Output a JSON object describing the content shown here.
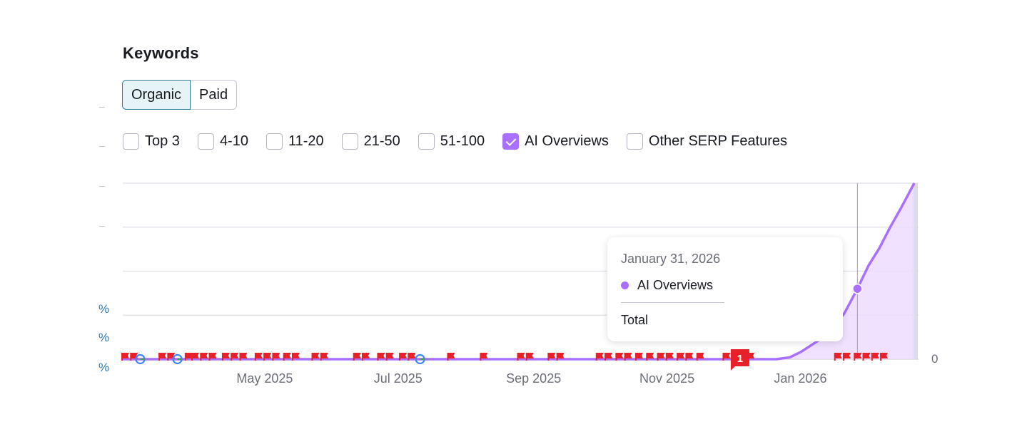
{
  "header": {
    "title": "Keywords"
  },
  "toggle": {
    "organic_label": "Organic",
    "paid_label": "Paid",
    "active": "Organic"
  },
  "filters": [
    {
      "label": "Top 3",
      "checked": false
    },
    {
      "label": "4-10",
      "checked": false
    },
    {
      "label": "11-20",
      "checked": false
    },
    {
      "label": "21-50",
      "checked": false
    },
    {
      "label": "51-100",
      "checked": false
    },
    {
      "label": "AI Overviews",
      "checked": true
    },
    {
      "label": "Other SERP Features",
      "checked": false
    }
  ],
  "left_axis_fragments": [
    "%",
    "%",
    "%"
  ],
  "colors": {
    "series": "#a970ff",
    "area": "#ecdcff",
    "grid": "#e3e5ea",
    "marker": "#e8202a",
    "active_toggle_border": "#2e7d97"
  },
  "chart_data": {
    "type": "area",
    "title": "",
    "xlabel": "",
    "ylabel": "",
    "x_ticks": [
      "May 2025",
      "Jul 2025",
      "Sep 2025",
      "Nov 2025",
      "Jan 2026"
    ],
    "y_right_tick": "0",
    "xlim": [
      "2025-03-01",
      "2026-02-28"
    ],
    "ylim": [
      0,
      100
    ],
    "grid": true,
    "legend": "none",
    "series": [
      {
        "name": "AI Overviews",
        "color": "#a970ff",
        "points": [
          [
            "2025-03-01",
            0
          ],
          [
            "2025-12-25",
            0
          ],
          [
            "2025-12-31",
            1
          ],
          [
            "2026-01-05",
            4
          ],
          [
            "2026-01-10",
            8
          ],
          [
            "2026-01-15",
            12
          ],
          [
            "2026-01-20",
            18
          ],
          [
            "2026-01-25",
            26
          ],
          [
            "2026-01-31",
            40
          ],
          [
            "2026-02-05",
            53
          ],
          [
            "2026-02-10",
            63
          ],
          [
            "2026-02-15",
            75
          ],
          [
            "2026-02-20",
            86
          ],
          [
            "2026-02-26",
            100
          ]
        ]
      }
    ],
    "annotation_flags": [
      "2025-03-01",
      "2025-03-05",
      "2025-03-18",
      "2025-03-22",
      "2025-03-30",
      "2025-04-02",
      "2025-04-06",
      "2025-04-10",
      "2025-04-16",
      "2025-04-20",
      "2025-04-24",
      "2025-05-01",
      "2025-05-05",
      "2025-05-09",
      "2025-05-14",
      "2025-05-18",
      "2025-05-27",
      "2025-05-31",
      "2025-06-15",
      "2025-06-19",
      "2025-06-26",
      "2025-06-30",
      "2025-07-06",
      "2025-07-10",
      "2025-07-28",
      "2025-08-12",
      "2025-08-29",
      "2025-09-02",
      "2025-09-12",
      "2025-09-16",
      "2025-10-04",
      "2025-10-08",
      "2025-10-13",
      "2025-10-17",
      "2025-10-22",
      "2025-10-27",
      "2025-11-01",
      "2025-11-05",
      "2025-11-10",
      "2025-11-14",
      "2025-11-19",
      "2025-12-01",
      "2025-12-12",
      "2026-01-21",
      "2026-01-25",
      "2026-01-30",
      "2026-02-03",
      "2026-02-07",
      "2026-02-11"
    ],
    "google_update_markers": [
      "2025-03-09",
      "2025-03-26",
      "2025-07-15"
    ],
    "highlighted_flag": {
      "date": "2025-12-08",
      "label": "1"
    },
    "tooltip": {
      "date": "January 31, 2026",
      "series": "AI Overviews",
      "total_label": "Total",
      "x": "2026-01-31",
      "y": 40
    }
  }
}
